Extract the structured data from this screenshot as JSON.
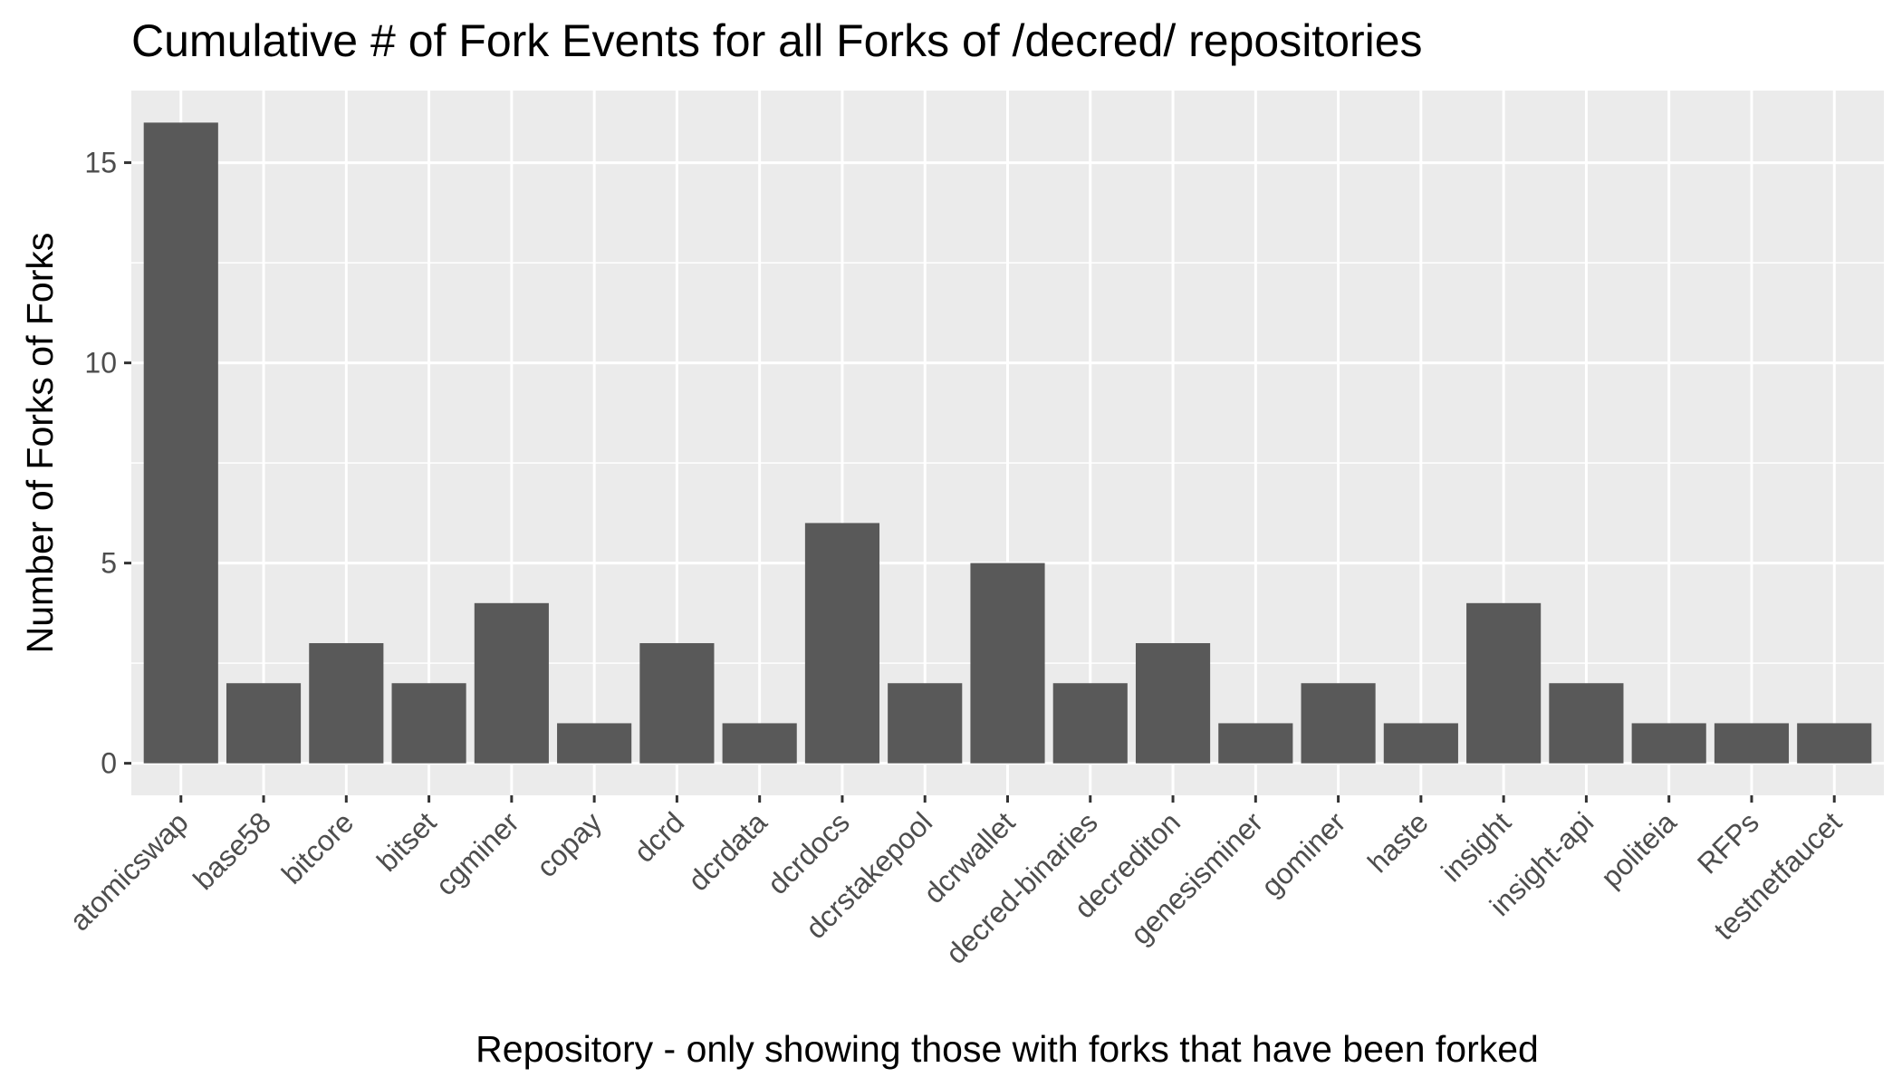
{
  "chart_data": {
    "type": "bar",
    "title": "Cumulative # of Fork Events for all Forks of /decred/ repositories",
    "xlabel": "Repository - only showing those with forks that have been forked",
    "ylabel": "Number of Forks of Forks",
    "categories": [
      "atomicswap",
      "base58",
      "bitcore",
      "bitset",
      "cgminer",
      "copay",
      "dcrd",
      "dcrdata",
      "dcrdocs",
      "dcrstakepool",
      "dcrwallet",
      "decred-binaries",
      "decrediton",
      "genesisminer",
      "gominer",
      "haste",
      "insight",
      "insight-api",
      "politeia",
      "RFPs",
      "testnetfaucet"
    ],
    "values": [
      16,
      2,
      3,
      2,
      4,
      1,
      3,
      1,
      6,
      2,
      5,
      2,
      3,
      1,
      2,
      1,
      4,
      2,
      1,
      1,
      1
    ],
    "ylim": [
      -0.8,
      16.8
    ],
    "yticks": [
      0,
      5,
      10,
      15
    ],
    "grid": true,
    "colors": {
      "bar": "#595959",
      "panel": "#ebebeb",
      "grid": "#ffffff",
      "tick_text": "#4d4d4d"
    }
  }
}
